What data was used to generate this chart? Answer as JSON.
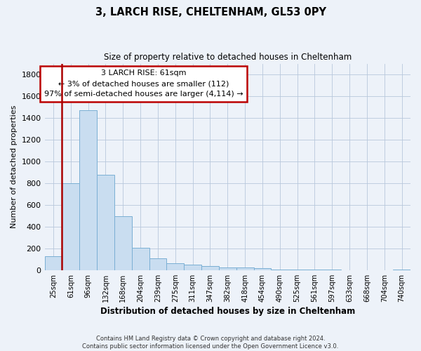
{
  "title": "3, LARCH RISE, CHELTENHAM, GL53 0PY",
  "subtitle": "Size of property relative to detached houses in Cheltenham",
  "xlabel": "Distribution of detached houses by size in Cheltenham",
  "ylabel": "Number of detached properties",
  "bar_labels": [
    "25sqm",
    "61sqm",
    "96sqm",
    "132sqm",
    "168sqm",
    "204sqm",
    "239sqm",
    "275sqm",
    "311sqm",
    "347sqm",
    "382sqm",
    "418sqm",
    "454sqm",
    "490sqm",
    "525sqm",
    "561sqm",
    "597sqm",
    "633sqm",
    "668sqm",
    "704sqm",
    "740sqm"
  ],
  "bar_values": [
    130,
    800,
    1470,
    880,
    495,
    205,
    108,
    65,
    50,
    35,
    25,
    22,
    15,
    5,
    5,
    3,
    3,
    2,
    2,
    2,
    8
  ],
  "bar_color": "#c9ddf0",
  "bar_edge_color": "#7aafd4",
  "vline_color": "#aa0000",
  "ylim": [
    0,
    1900
  ],
  "yticks": [
    0,
    200,
    400,
    600,
    800,
    1000,
    1200,
    1400,
    1600,
    1800
  ],
  "annotation_lines": [
    "3 LARCH RISE: 61sqm",
    "← 3% of detached houses are smaller (112)",
    "97% of semi-detached houses are larger (4,114) →"
  ],
  "box_color": "#ffffff",
  "box_edge_color": "#bb0000",
  "footer_line1": "Contains HM Land Registry data © Crown copyright and database right 2024.",
  "footer_line2": "Contains public sector information licensed under the Open Government Licence v3.0.",
  "bg_color": "#edf2f9"
}
